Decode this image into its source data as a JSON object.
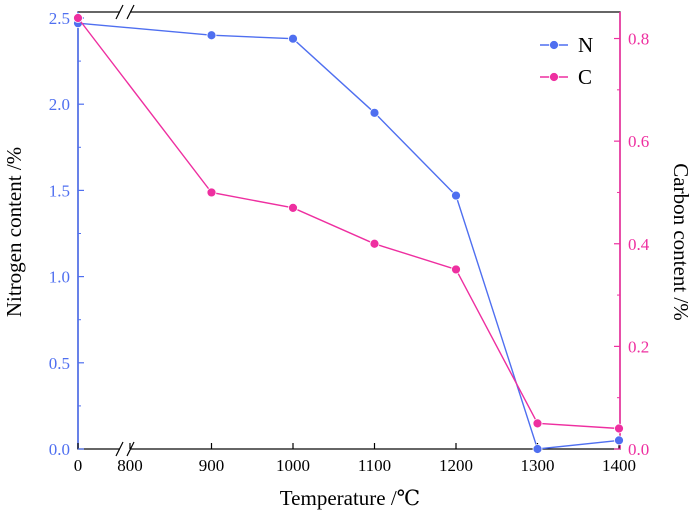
{
  "chart_data": {
    "type": "line",
    "xlabel": "Temperature /℃",
    "ylabel_left": "Nitrogen content /%",
    "ylabel_right": "Carbon content /%",
    "x_tick_labels": [
      "0",
      "800",
      "900",
      "1000",
      "1100",
      "1200",
      "1300",
      "1400"
    ],
    "x_axis_break": "between 0 and 800",
    "x": [
      "0",
      "900",
      "1000",
      "1100",
      "1200",
      "1300",
      "1400"
    ],
    "ylim_left": [
      0,
      2.5
    ],
    "yticks_left": [
      "0.0",
      "0.5",
      "1.0",
      "1.5",
      "2.0",
      "2.5"
    ],
    "ylim_right": [
      0,
      0.84
    ],
    "yticks_right": [
      "0.0",
      "0.2",
      "0.4",
      "0.6",
      "0.8"
    ],
    "series": [
      {
        "name": "N",
        "axis": "left",
        "color": "#4f6ff0",
        "values": [
          2.47,
          2.4,
          2.38,
          1.95,
          1.47,
          0.0,
          0.05
        ]
      },
      {
        "name": "C",
        "axis": "right",
        "color": "#ee2fa0",
        "values": [
          0.84,
          0.5,
          0.47,
          0.4,
          0.35,
          0.05,
          0.04
        ]
      }
    ],
    "legend": "top-right",
    "left_axis_color": "#4f6ff0",
    "right_axis_color": "#ee2fa0"
  }
}
